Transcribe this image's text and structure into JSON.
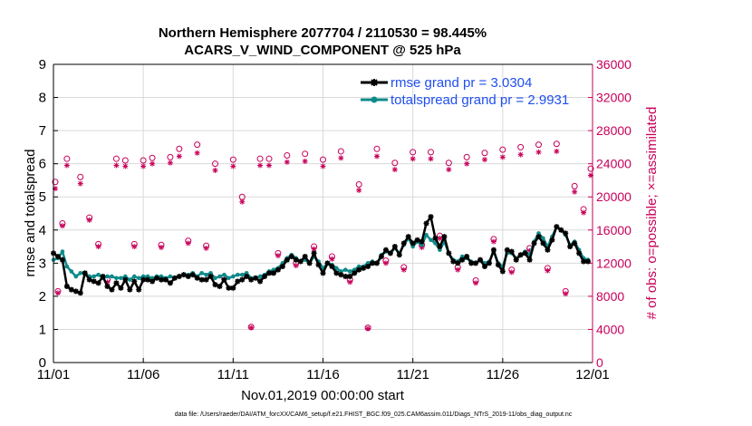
{
  "chart_data": {
    "type": "line",
    "title_line1": "Northern Hemisphere 2077704 / 2110530 = 98.445%",
    "title_line2": "ACARS_V_WIND_COMPONENT @ 525 hPa",
    "xlabel": "Nov.01,2019 00:00:00 start",
    "ylabel_left": "rmse and totalspread",
    "ylabel_right": "# of obs: o=possible; ×=assimilated",
    "footnote": "data file: /Users/raeder/DAI/ATM_forcXX/CAM6_setup/f.e21.FHIST_BGC.f09_025.CAM6assim.011/Diags_NTrS_2019-11/obs_diag_output.nc",
    "xlim": [
      0,
      30
    ],
    "ylim_left": [
      0,
      9
    ],
    "ylim_right": [
      0,
      36000
    ],
    "x_ticks": [
      {
        "value": 0,
        "label": "11/01"
      },
      {
        "value": 5,
        "label": "11/06"
      },
      {
        "value": 10,
        "label": "11/11"
      },
      {
        "value": 15,
        "label": "11/16"
      },
      {
        "value": 20,
        "label": "11/21"
      },
      {
        "value": 25,
        "label": "11/26"
      },
      {
        "value": 30,
        "label": "12/01"
      }
    ],
    "y_ticks_left": [
      "0",
      "1",
      "2",
      "3",
      "4",
      "5",
      "6",
      "7",
      "8",
      "9"
    ],
    "y_ticks_right": [
      "0",
      "4000",
      "8000",
      "12000",
      "16000",
      "20000",
      "24000",
      "28000",
      "32000",
      "36000"
    ],
    "legend": [
      {
        "label": "rmse grand pr = 3.0304",
        "color": "#000000"
      },
      {
        "label": "totalspread grand pr = 2.9931",
        "color": "#0e8a8a"
      }
    ],
    "colors": {
      "rmse": "#000000",
      "spread": "#0e8a8a",
      "obs": "#c8005a",
      "legend_text": "#1f4ff0"
    },
    "series": [
      {
        "name": "rmse",
        "x": [
          0.0,
          0.25,
          0.5,
          0.75,
          1.0,
          1.25,
          1.5,
          1.75,
          2.0,
          2.25,
          2.5,
          2.75,
          3.0,
          3.25,
          3.5,
          3.75,
          4.0,
          4.25,
          4.5,
          4.75,
          5.0,
          5.25,
          5.5,
          5.75,
          6.0,
          6.25,
          6.5,
          6.75,
          7.0,
          7.25,
          7.5,
          7.75,
          8.0,
          8.25,
          8.5,
          8.75,
          9.0,
          9.25,
          9.5,
          9.75,
          10.0,
          10.25,
          10.5,
          10.75,
          11.0,
          11.25,
          11.5,
          11.75,
          12.0,
          12.25,
          12.5,
          12.75,
          13.0,
          13.25,
          13.5,
          13.75,
          14.0,
          14.25,
          14.5,
          14.75,
          15.0,
          15.25,
          15.5,
          15.75,
          16.0,
          16.25,
          16.5,
          16.75,
          17.0,
          17.25,
          17.5,
          17.75,
          18.0,
          18.25,
          18.5,
          18.75,
          19.0,
          19.25,
          19.5,
          19.75,
          20.0,
          20.25,
          20.5,
          20.75,
          21.0,
          21.25,
          21.5,
          21.75,
          22.0,
          22.25,
          22.5,
          22.75,
          23.0,
          23.25,
          23.5,
          23.75,
          24.0,
          24.25,
          24.5,
          24.75,
          25.0,
          25.25,
          25.5,
          25.75,
          26.0,
          26.25,
          26.5,
          26.75,
          27.0,
          27.25,
          27.5,
          27.75,
          28.0,
          28.25,
          28.5,
          28.75,
          29.0,
          29.25,
          29.5,
          29.75
        ],
        "values": [
          3.3,
          3.2,
          3.1,
          2.3,
          2.2,
          2.15,
          2.1,
          2.7,
          2.5,
          2.45,
          2.4,
          2.6,
          2.3,
          2.2,
          2.4,
          2.25,
          2.5,
          2.2,
          2.45,
          2.2,
          2.5,
          2.5,
          2.45,
          2.55,
          2.5,
          2.5,
          2.4,
          2.55,
          2.6,
          2.65,
          2.6,
          2.65,
          2.55,
          2.5,
          2.5,
          2.6,
          2.35,
          2.3,
          2.5,
          2.25,
          2.25,
          2.45,
          2.5,
          2.6,
          2.5,
          2.55,
          2.45,
          2.6,
          2.7,
          2.7,
          2.8,
          2.9,
          3.1,
          3.2,
          3.1,
          3.05,
          3.2,
          3.0,
          3.3,
          2.95,
          2.7,
          3.0,
          2.9,
          2.7,
          2.65,
          2.6,
          2.6,
          2.7,
          2.8,
          2.85,
          2.9,
          3.0,
          3.0,
          3.2,
          3.4,
          3.3,
          3.5,
          3.25,
          3.6,
          3.8,
          3.6,
          3.7,
          3.65,
          4.2,
          4.4,
          3.75,
          3.5,
          3.8,
          3.3,
          3.05,
          3.0,
          3.1,
          3.2,
          3.0,
          3.0,
          3.1,
          2.9,
          3.0,
          3.4,
          2.95,
          2.75,
          3.4,
          3.35,
          3.1,
          3.25,
          3.3,
          3.1,
          3.6,
          3.8,
          3.6,
          3.4,
          3.7,
          4.1,
          4.0,
          3.9,
          3.5,
          3.6,
          3.3,
          3.05,
          3.05
        ]
      },
      {
        "name": "totalspread",
        "x": [
          0.0,
          0.25,
          0.5,
          0.75,
          1.0,
          1.25,
          1.5,
          1.75,
          2.0,
          2.25,
          2.5,
          2.75,
          3.0,
          3.25,
          3.5,
          3.75,
          4.0,
          4.25,
          4.5,
          4.75,
          5.0,
          5.25,
          5.5,
          5.75,
          6.0,
          6.25,
          6.5,
          6.75,
          7.0,
          7.25,
          7.5,
          7.75,
          8.0,
          8.25,
          8.5,
          8.75,
          9.0,
          9.25,
          9.5,
          9.75,
          10.0,
          10.25,
          10.5,
          10.75,
          11.0,
          11.25,
          11.5,
          11.75,
          12.0,
          12.25,
          12.5,
          12.75,
          13.0,
          13.25,
          13.5,
          13.75,
          14.0,
          14.25,
          14.5,
          14.75,
          15.0,
          15.25,
          15.5,
          15.75,
          16.0,
          16.25,
          16.5,
          16.75,
          17.0,
          17.25,
          17.5,
          17.75,
          18.0,
          18.25,
          18.5,
          18.75,
          19.0,
          19.25,
          19.5,
          19.75,
          20.0,
          20.25,
          20.5,
          20.75,
          21.0,
          21.25,
          21.5,
          21.75,
          22.0,
          22.25,
          22.5,
          22.75,
          23.0,
          23.25,
          23.5,
          23.75,
          24.0,
          24.25,
          24.5,
          24.75,
          25.0,
          25.25,
          25.5,
          25.75,
          26.0,
          26.25,
          26.5,
          26.75,
          27.0,
          27.25,
          27.5,
          27.75,
          28.0,
          28.25,
          28.5,
          28.75,
          29.0,
          29.25,
          29.5,
          29.75
        ],
        "values": [
          3.1,
          3.15,
          3.35,
          2.9,
          2.75,
          2.6,
          2.7,
          2.7,
          2.6,
          2.6,
          2.65,
          2.55,
          2.6,
          2.6,
          2.55,
          2.55,
          2.6,
          2.5,
          2.6,
          2.55,
          2.6,
          2.6,
          2.55,
          2.6,
          2.6,
          2.55,
          2.6,
          2.55,
          2.6,
          2.65,
          2.65,
          2.7,
          2.6,
          2.7,
          2.65,
          2.7,
          2.55,
          2.6,
          2.65,
          2.55,
          2.6,
          2.65,
          2.65,
          2.7,
          2.55,
          2.55,
          2.6,
          2.65,
          2.75,
          2.8,
          2.85,
          3.0,
          3.15,
          3.25,
          3.15,
          3.05,
          3.1,
          3.0,
          3.2,
          3.05,
          2.85,
          3.0,
          2.95,
          2.85,
          2.75,
          2.8,
          2.75,
          2.8,
          2.9,
          2.9,
          3.0,
          3.05,
          3.0,
          3.25,
          3.35,
          3.3,
          3.45,
          3.3,
          3.55,
          3.75,
          3.5,
          3.65,
          3.55,
          3.85,
          3.7,
          3.6,
          3.4,
          3.65,
          3.3,
          3.1,
          3.05,
          3.2,
          3.15,
          3.05,
          3.0,
          3.1,
          3.0,
          3.05,
          3.35,
          3.0,
          2.9,
          3.3,
          3.3,
          3.15,
          3.25,
          3.35,
          3.25,
          3.65,
          3.9,
          3.75,
          3.5,
          3.8,
          4.1,
          4.0,
          3.85,
          3.55,
          3.65,
          3.4,
          3.15,
          3.1
        ]
      }
    ],
    "obs_possible": {
      "x": [
        0.1,
        0.25,
        0.5,
        0.75,
        1.5,
        2.0,
        2.5,
        3.0,
        3.5,
        4.0,
        4.5,
        5.0,
        5.5,
        6.0,
        6.5,
        7.0,
        7.5,
        8.0,
        8.5,
        9.0,
        9.5,
        10.0,
        10.5,
        11.0,
        11.5,
        12.0,
        12.5,
        13.0,
        13.5,
        14.0,
        14.5,
        15.0,
        15.5,
        16.0,
        16.5,
        17.0,
        17.5,
        18.0,
        18.5,
        19.0,
        19.5,
        20.0,
        20.5,
        21.0,
        21.5,
        22.0,
        22.5,
        23.0,
        23.5,
        24.0,
        24.5,
        25.0,
        25.5,
        26.0,
        26.5,
        27.0,
        27.5,
        28.0,
        28.5,
        29.0,
        29.5,
        29.9
      ],
      "values": [
        21800,
        8600,
        16800,
        24600,
        22400,
        17500,
        14300,
        10000,
        24600,
        24400,
        14300,
        24400,
        24700,
        14200,
        24800,
        25800,
        14700,
        26300,
        14100,
        24000,
        10300,
        24500,
        20000,
        4300,
        24600,
        24600,
        13200,
        25000,
        12000,
        25200,
        14000,
        24500,
        12800,
        25500,
        10000,
        21500,
        4200,
        25800,
        12300,
        24100,
        11500,
        25400,
        14200,
        25400,
        15300,
        24100,
        11500,
        24800,
        9900,
        25300,
        14900,
        25700,
        11200,
        26000,
        13800,
        26300,
        11400,
        26400,
        8600,
        21300,
        18500,
        23400
      ]
    },
    "obs_assimilated": {
      "x": [
        0.1,
        0.25,
        0.5,
        0.75,
        1.5,
        2.0,
        2.5,
        3.0,
        3.5,
        4.0,
        4.5,
        5.0,
        5.5,
        6.0,
        6.5,
        7.0,
        7.5,
        8.0,
        8.5,
        9.0,
        9.5,
        10.0,
        10.5,
        11.0,
        11.5,
        12.0,
        12.5,
        13.0,
        13.5,
        14.0,
        14.5,
        15.0,
        15.5,
        16.0,
        16.5,
        17.0,
        17.5,
        18.0,
        18.5,
        19.0,
        19.5,
        20.0,
        20.5,
        21.0,
        21.5,
        22.0,
        22.5,
        23.0,
        23.5,
        24.0,
        24.5,
        25.0,
        25.5,
        26.0,
        26.5,
        27.0,
        27.5,
        28.0,
        28.5,
        29.0,
        29.5,
        29.9
      ],
      "values": [
        21000,
        8400,
        16500,
        23800,
        21600,
        17200,
        14000,
        9700,
        23800,
        23700,
        14000,
        23700,
        24000,
        13900,
        24100,
        24900,
        14400,
        25300,
        13800,
        23200,
        10000,
        23700,
        19400,
        4200,
        23800,
        23800,
        12900,
        24200,
        11700,
        24300,
        13700,
        23700,
        12500,
        24700,
        9700,
        20800,
        4100,
        24900,
        12000,
        23300,
        11200,
        24600,
        13900,
        24600,
        15000,
        23300,
        11200,
        24000,
        9600,
        24500,
        14600,
        24800,
        10900,
        25100,
        13500,
        25400,
        11100,
        25500,
        8300,
        20600,
        18100,
        22600
      ]
    }
  }
}
